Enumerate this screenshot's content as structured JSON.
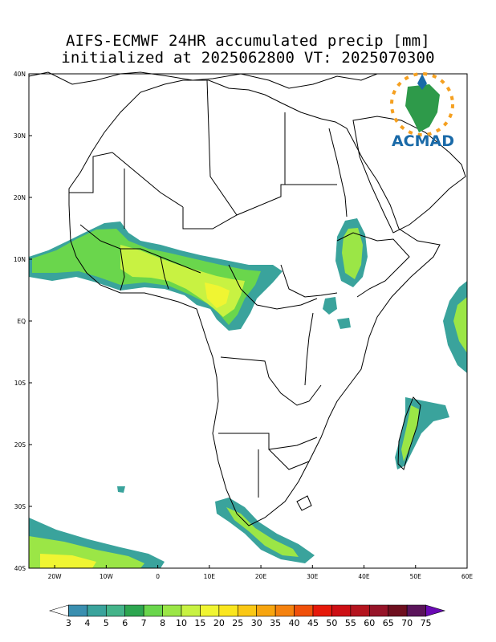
{
  "title": {
    "line1": "AIFS-ECMWF 24HR accumulated precip [mm]",
    "line2": "initialized at 2025062800 VT: 2025070300"
  },
  "logo": {
    "text": "ACMAD",
    "text_color": "#1a6aa8"
  },
  "map": {
    "lon_range": [
      -25,
      60
    ],
    "lat_range": [
      -40,
      40
    ],
    "lat_ticks": [
      {
        "lat": 40,
        "label": "40N"
      },
      {
        "lat": 30,
        "label": "30N"
      },
      {
        "lat": 20,
        "label": "20N"
      },
      {
        "lat": 10,
        "label": "10N"
      },
      {
        "lat": 0,
        "label": "EQ"
      },
      {
        "lat": -10,
        "label": "10S"
      },
      {
        "lat": -20,
        "label": "20S"
      },
      {
        "lat": -30,
        "label": "30S"
      },
      {
        "lat": -40,
        "label": "40S"
      }
    ],
    "lon_ticks": [
      {
        "lon": -20,
        "label": "20W"
      },
      {
        "lon": -10,
        "label": "10W"
      },
      {
        "lon": 0,
        "label": "0"
      },
      {
        "lon": 10,
        "label": "10E"
      },
      {
        "lon": 20,
        "label": "20E"
      },
      {
        "lon": 30,
        "label": "30E"
      },
      {
        "lon": 40,
        "label": "40E"
      },
      {
        "lon": 50,
        "label": "50E"
      },
      {
        "lon": 60,
        "label": "60E"
      }
    ]
  },
  "colorbar": {
    "labels": [
      "3",
      "4",
      "5",
      "6",
      "7",
      "8",
      "10",
      "15",
      "20",
      "25",
      "30",
      "35",
      "40",
      "45",
      "50",
      "55",
      "60",
      "65",
      "70",
      "75"
    ],
    "colors": [
      "#ffffff",
      "#3a8fb0",
      "#3aa39c",
      "#44b48a",
      "#2da650",
      "#6ad64c",
      "#9be646",
      "#c8f242",
      "#f0f532",
      "#fae61e",
      "#fac814",
      "#f7a50f",
      "#f5820f",
      "#f0500a",
      "#e6190a",
      "#cd0f14",
      "#b4141e",
      "#961428",
      "#6e0f1e",
      "#5a145a",
      "#6a0ab4"
    ]
  }
}
